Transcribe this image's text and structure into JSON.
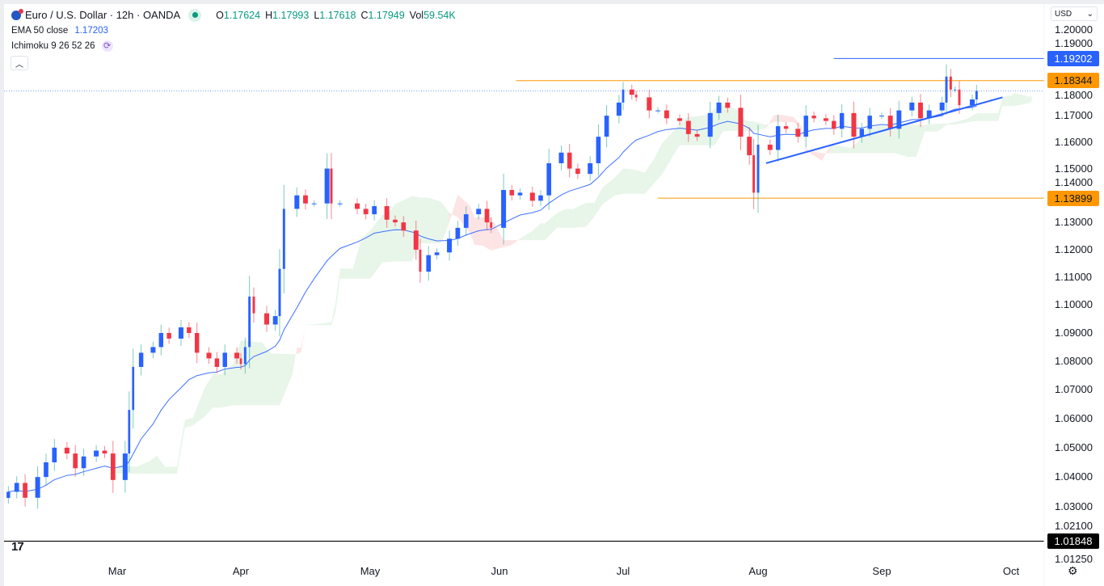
{
  "header": {
    "symbol_title": "Euro / U.S. Dollar · 12h · OANDA",
    "ohlc": [
      {
        "key": "O",
        "value": "1.17624"
      },
      {
        "key": "H",
        "value": "1.17993"
      },
      {
        "key": "L",
        "value": "1.17618"
      },
      {
        "key": "C",
        "value": "1.17949"
      },
      {
        "key": "Vol",
        "value": "59.54K"
      }
    ],
    "ema_label": "EMA 50 close",
    "ema_value": "1.17203",
    "ichimoku_label": "Ichimoku 9 26 52 26",
    "collapse_icon": "chevron-up-icon",
    "currency": "USD"
  },
  "price_axis": {
    "ticks": [
      "1.20000",
      "1.19000",
      "1.18000",
      "1.17000",
      "1.16000",
      "1.15000",
      "1.14000",
      "1.13000",
      "1.12000",
      "1.11000",
      "1.10000",
      "1.09000",
      "1.08000",
      "1.07000",
      "1.06000",
      "1.05000",
      "1.04000",
      "1.03000",
      "1.02100",
      "1.01250"
    ],
    "tags": [
      {
        "label": "1.19202",
        "bg": "#2962ff",
        "fg": "#ffffff"
      },
      {
        "label": "1.18344",
        "bg": "#ff9800",
        "fg": "#131722"
      },
      {
        "label": "1.13899",
        "bg": "#ff9800",
        "fg": "#131722"
      },
      {
        "label": "1.01848",
        "bg": "#000000",
        "fg": "#ffffff"
      }
    ]
  },
  "time_axis": {
    "months": [
      "Mar",
      "Apr",
      "May",
      "Jun",
      "Jul",
      "Aug",
      "Sep",
      "Oct"
    ]
  },
  "footer": {
    "logo": "17",
    "settings_icon": "gear-icon"
  },
  "colors": {
    "up_body": "#2962ff",
    "up_wick": "#26a69a",
    "down": "#f23645",
    "ema": "#2962ff",
    "cloud_up": "#e8f5e9",
    "cloud_down": "#fde4e4",
    "resistance": "#ff9800",
    "high_line": "#2962ff",
    "trendline": "#2962ff"
  },
  "chart_data": {
    "type": "candlestick",
    "scale": "log",
    "ylim": [
      1.0125,
      1.205
    ],
    "x_ticks": [
      "Mar",
      "Apr",
      "May",
      "Jun",
      "Jul",
      "Aug",
      "Sep",
      "Oct"
    ],
    "closes": [
      [
        "02-03",
        1.035
      ],
      [
        "02-05",
        1.038
      ],
      [
        "02-07",
        1.033
      ],
      [
        "02-10",
        1.04
      ],
      [
        "02-12",
        1.045
      ],
      [
        "02-14",
        1.05
      ],
      [
        "02-17",
        1.048
      ],
      [
        "02-19",
        1.043
      ],
      [
        "02-21",
        1.047
      ],
      [
        "02-24",
        1.049
      ],
      [
        "02-26",
        1.048
      ],
      [
        "02-28",
        1.039
      ],
      [
        "03-03",
        1.048
      ],
      [
        "03-04",
        1.063
      ],
      [
        "03-05",
        1.078
      ],
      [
        "03-07",
        1.083
      ],
      [
        "03-10",
        1.085
      ],
      [
        "03-12",
        1.09
      ],
      [
        "03-14",
        1.088
      ],
      [
        "03-17",
        1.092
      ],
      [
        "03-19",
        1.09
      ],
      [
        "03-21",
        1.083
      ],
      [
        "03-24",
        1.081
      ],
      [
        "03-26",
        1.078
      ],
      [
        "03-28",
        1.083
      ],
      [
        "03-31",
        1.081
      ],
      [
        "04-01",
        1.079
      ],
      [
        "04-02",
        1.085
      ],
      [
        "04-03",
        1.103
      ],
      [
        "04-04",
        1.097
      ],
      [
        "04-07",
        1.093
      ],
      [
        "04-09",
        1.096
      ],
      [
        "04-10",
        1.113
      ],
      [
        "04-11",
        1.135
      ],
      [
        "04-14",
        1.14
      ],
      [
        "04-16",
        1.137
      ],
      [
        "04-18",
        1.137
      ],
      [
        "04-21",
        1.15
      ],
      [
        "04-22",
        1.137
      ],
      [
        "04-24",
        1.137
      ],
      [
        "04-28",
        1.135
      ],
      [
        "04-30",
        1.133
      ],
      [
        "05-02",
        1.136
      ],
      [
        "05-05",
        1.131
      ],
      [
        "05-07",
        1.13
      ],
      [
        "05-09",
        1.127
      ],
      [
        "05-12",
        1.12
      ],
      [
        "05-13",
        1.112
      ],
      [
        "05-15",
        1.118
      ],
      [
        "05-17",
        1.119
      ],
      [
        "05-20",
        1.124
      ],
      [
        "05-22",
        1.128
      ],
      [
        "05-24",
        1.133
      ],
      [
        "05-27",
        1.135
      ],
      [
        "05-29",
        1.13
      ],
      [
        "05-30",
        1.128
      ],
      [
        "06-02",
        1.142
      ],
      [
        "06-04",
        1.14
      ],
      [
        "06-06",
        1.141
      ],
      [
        "06-09",
        1.138
      ],
      [
        "06-11",
        1.14
      ],
      [
        "06-13",
        1.152
      ],
      [
        "06-16",
        1.156
      ],
      [
        "06-18",
        1.15
      ],
      [
        "06-20",
        1.148
      ],
      [
        "06-23",
        1.152
      ],
      [
        "06-25",
        1.162
      ],
      [
        "06-27",
        1.17
      ],
      [
        "06-30",
        1.175
      ],
      [
        "07-01",
        1.18
      ],
      [
        "07-03",
        1.178
      ],
      [
        "07-04",
        1.177
      ],
      [
        "07-07",
        1.172
      ],
      [
        "07-09",
        1.172
      ],
      [
        "07-11",
        1.169
      ],
      [
        "07-14",
        1.168
      ],
      [
        "07-16",
        1.163
      ],
      [
        "07-18",
        1.162
      ],
      [
        "07-21",
        1.171
      ],
      [
        "07-23",
        1.175
      ],
      [
        "07-25",
        1.173
      ],
      [
        "07-28",
        1.162
      ],
      [
        "07-30",
        1.155
      ],
      [
        "07-31",
        1.141
      ],
      [
        "08-01",
        1.159
      ],
      [
        "08-04",
        1.157
      ],
      [
        "08-06",
        1.166
      ],
      [
        "08-08",
        1.165
      ],
      [
        "08-11",
        1.162
      ],
      [
        "08-13",
        1.17
      ],
      [
        "08-15",
        1.169
      ],
      [
        "08-18",
        1.168
      ],
      [
        "08-20",
        1.165
      ],
      [
        "08-22",
        1.171
      ],
      [
        "08-25",
        1.162
      ],
      [
        "08-27",
        1.165
      ],
      [
        "08-29",
        1.17
      ],
      [
        "09-01",
        1.17
      ],
      [
        "09-03",
        1.165
      ],
      [
        "09-05",
        1.172
      ],
      [
        "09-08",
        1.175
      ],
      [
        "09-10",
        1.169
      ],
      [
        "09-12",
        1.172
      ],
      [
        "09-15",
        1.175
      ],
      [
        "09-16",
        1.185
      ],
      [
        "09-17",
        1.18
      ],
      [
        "09-18",
        1.18
      ],
      [
        "09-19",
        1.174
      ],
      [
        "09-22",
        1.1762
      ],
      [
        "09-23",
        1.17949
      ]
    ],
    "horizontal_levels": [
      {
        "price": 1.19202,
        "from": "08-20",
        "color": "#2962ff"
      },
      {
        "price": 1.18344,
        "from": "06-05",
        "color": "#ff9800"
      },
      {
        "price": 1.13899,
        "from": "07-09",
        "color": "#ff9800"
      },
      {
        "price": 1.01848,
        "from": "02-01",
        "color": "#000000"
      }
    ],
    "current_price": 1.17949,
    "trendline": [
      [
        "08-03",
        1.152
      ],
      [
        "09-29",
        1.177
      ]
    ],
    "indicators": [
      "EMA 50 close",
      "Ichimoku 9 26 52 26"
    ]
  }
}
